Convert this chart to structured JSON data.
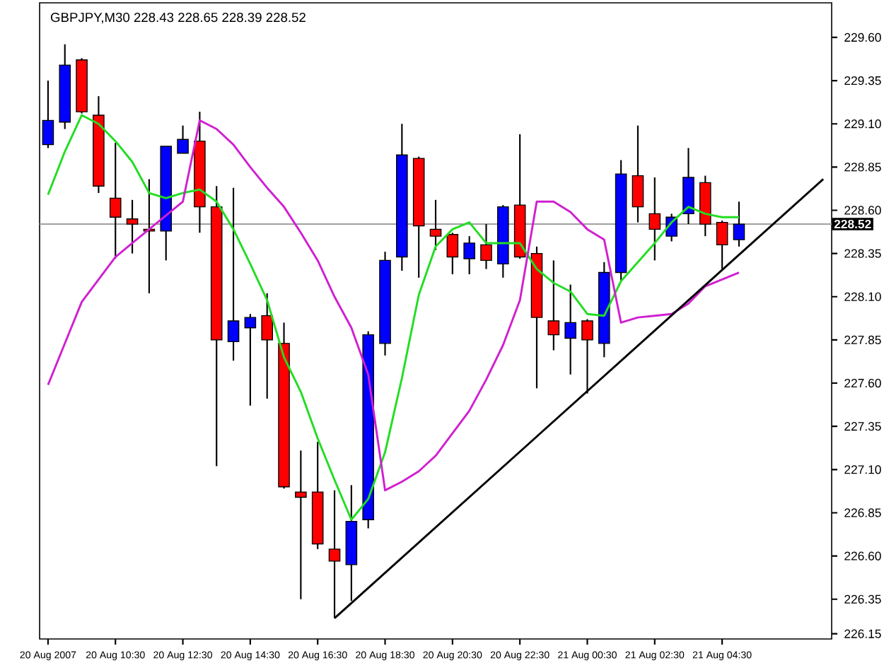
{
  "chart_data": {
    "type": "candlestick",
    "title": "GBPJPY,M30  228.43 228.65 228.39 228.52",
    "categories": [
      "20 Aug 2007",
      null,
      null,
      null,
      "20 Aug 10:30",
      null,
      null,
      null,
      "20 Aug 12:30",
      null,
      null,
      null,
      "20 Aug 14:30",
      null,
      null,
      null,
      "20 Aug 16:30",
      null,
      null,
      null,
      "20 Aug 18:30",
      null,
      null,
      null,
      "20 Aug 20:30",
      null,
      null,
      null,
      "20 Aug 22:30",
      null,
      null,
      null,
      "21 Aug 00:30",
      null,
      null,
      null,
      "21 Aug 02:30",
      null,
      null,
      null,
      "21 Aug 04:30",
      null,
      null,
      null,
      null,
      null,
      null
    ],
    "ohlc": [
      [
        228.98,
        229.35,
        228.96,
        229.12
      ],
      [
        229.11,
        229.56,
        229.07,
        229.44
      ],
      [
        229.47,
        229.48,
        229.16,
        229.17
      ],
      [
        229.15,
        229.26,
        228.7,
        228.74
      ],
      [
        228.67,
        228.99,
        228.32,
        228.56
      ],
      [
        228.55,
        228.66,
        228.35,
        228.52
      ],
      [
        228.49,
        228.78,
        228.12,
        228.48
      ],
      [
        228.48,
        228.97,
        228.31,
        228.97
      ],
      [
        228.93,
        229.09,
        228.93,
        229.01
      ],
      [
        229.0,
        229.17,
        228.47,
        228.62
      ],
      [
        228.62,
        228.74,
        227.12,
        227.85
      ],
      [
        227.84,
        228.73,
        227.73,
        227.96
      ],
      [
        227.92,
        228.0,
        227.47,
        227.98
      ],
      [
        227.99,
        228.12,
        227.51,
        227.85
      ],
      [
        227.83,
        227.95,
        226.99,
        227.0
      ],
      [
        226.97,
        227.21,
        226.35,
        226.94
      ],
      [
        226.97,
        227.26,
        226.64,
        226.67
      ],
      [
        226.64,
        226.98,
        226.24,
        226.57
      ],
      [
        226.55,
        227.01,
        226.34,
        226.8
      ],
      [
        226.81,
        227.9,
        226.76,
        227.88
      ],
      [
        227.83,
        228.36,
        227.76,
        228.31
      ],
      [
        228.33,
        229.1,
        228.25,
        228.92
      ],
      [
        228.9,
        228.91,
        228.21,
        228.51
      ],
      [
        228.49,
        228.66,
        228.37,
        228.45
      ],
      [
        228.46,
        228.47,
        228.23,
        228.33
      ],
      [
        228.32,
        228.45,
        228.23,
        228.41
      ],
      [
        228.4,
        228.52,
        228.26,
        228.31
      ],
      [
        228.29,
        228.63,
        228.21,
        228.62
      ],
      [
        228.63,
        229.04,
        228.32,
        228.33
      ],
      [
        228.35,
        228.39,
        227.57,
        227.98
      ],
      [
        227.96,
        228.31,
        227.79,
        227.88
      ],
      [
        227.86,
        228.17,
        227.65,
        227.95
      ],
      [
        227.96,
        227.97,
        227.54,
        227.85
      ],
      [
        227.83,
        228.3,
        227.75,
        228.24
      ],
      [
        228.24,
        228.89,
        228.19,
        228.81
      ],
      [
        228.8,
        229.09,
        228.53,
        228.62
      ],
      [
        228.58,
        228.79,
        228.31,
        228.49
      ],
      [
        228.45,
        228.58,
        228.42,
        228.56
      ],
      [
        228.58,
        228.96,
        228.52,
        228.79
      ],
      [
        228.76,
        228.8,
        228.45,
        228.52
      ],
      [
        228.53,
        228.54,
        228.26,
        228.4
      ],
      [
        228.43,
        228.65,
        228.39,
        228.52
      ],
      null,
      null,
      null,
      null,
      null
    ],
    "colors": [
      "#0000ff",
      "#0000ff",
      "#ff0000",
      "#ff0000",
      "#ff0000",
      "#ff0000",
      "#ff0000",
      "#0000ff",
      "#0000ff",
      "#ff0000",
      "#ff0000",
      "#0000ff",
      "#0000ff",
      "#ff0000",
      "#ff0000",
      "#ff0000",
      "#ff0000",
      "#ff0000",
      "#0000ff",
      "#0000ff",
      "#0000ff",
      "#0000ff",
      "#ff0000",
      "#ff0000",
      "#ff0000",
      "#0000ff",
      "#ff0000",
      "#0000ff",
      "#ff0000",
      "#ff0000",
      "#ff0000",
      "#0000ff",
      "#ff0000",
      "#0000ff",
      "#0000ff",
      "#ff0000",
      "#ff0000",
      "#0000ff",
      "#0000ff",
      "#ff0000",
      "#ff0000",
      "#0000ff",
      null,
      null,
      null,
      null,
      null
    ],
    "series": [
      {
        "type": "line",
        "color": "#22dd22",
        "values": [
          228.69,
          228.94,
          229.15,
          229.1,
          229.0,
          228.88,
          228.7,
          228.67,
          228.7,
          228.72,
          228.65,
          228.49,
          228.29,
          228.08,
          227.75,
          227.55,
          227.28,
          227.04,
          226.81,
          226.93,
          227.2,
          227.63,
          228.11,
          228.39,
          228.49,
          228.53,
          228.41,
          228.41,
          228.41,
          228.26,
          228.18,
          228.13,
          228.0,
          227.99,
          228.19,
          228.3,
          228.41,
          228.53,
          228.62,
          228.58,
          228.56,
          228.56,
          null,
          null,
          null,
          null,
          null
        ]
      },
      {
        "type": "line",
        "color": "#d020d0",
        "values": [
          227.59,
          227.83,
          228.07,
          228.2,
          228.33,
          228.41,
          228.49,
          228.57,
          228.65,
          229.12,
          229.07,
          228.98,
          228.85,
          228.73,
          228.62,
          228.47,
          228.31,
          228.1,
          227.92,
          227.65,
          226.98,
          227.03,
          227.09,
          227.18,
          227.31,
          227.44,
          227.62,
          227.82,
          228.08,
          228.65,
          228.65,
          228.59,
          228.49,
          228.43,
          227.95,
          227.98,
          227.99,
          228.0,
          228.06,
          228.16,
          228.2,
          228.24,
          null,
          null,
          null,
          null,
          null
        ]
      },
      {
        "type": "line",
        "color": "#000000",
        "values": [
          null,
          null,
          null,
          null,
          null,
          null,
          null,
          null,
          null,
          null,
          null,
          null,
          null,
          null,
          null,
          null,
          null,
          226.24,
          null,
          null,
          null,
          null,
          null,
          null,
          null,
          null,
          null,
          null,
          null,
          null,
          null,
          null,
          null,
          null,
          null,
          null,
          null,
          null,
          null,
          null,
          null,
          null,
          null,
          null,
          null,
          null,
          228.78
        ]
      }
    ],
    "ref_lines": [
      {
        "axis": "y",
        "value": 228.52,
        "label": "228.52",
        "color": "#a0a0a0"
      }
    ],
    "ylim": [
      226.12,
      229.8
    ],
    "yticks": [
      {
        "value": 226.15,
        "label": "226.15"
      },
      {
        "value": 226.35,
        "label": "226.35"
      },
      {
        "value": 226.6,
        "label": "226.60"
      },
      {
        "value": 226.85,
        "label": "226.85"
      },
      {
        "value": 227.1,
        "label": "227.10"
      },
      {
        "value": 227.35,
        "label": "227.35"
      },
      {
        "value": 227.6,
        "label": "227.60"
      },
      {
        "value": 227.85,
        "label": "227.85"
      },
      {
        "value": 228.1,
        "label": "228.10"
      },
      {
        "value": 228.35,
        "label": "228.35"
      },
      {
        "value": 228.6,
        "label": "228.60"
      },
      {
        "value": 228.85,
        "label": "228.85"
      },
      {
        "value": 229.1,
        "label": "229.10"
      },
      {
        "value": 229.35,
        "label": "229.35"
      },
      {
        "value": 229.6,
        "label": "229.60"
      }
    ]
  }
}
